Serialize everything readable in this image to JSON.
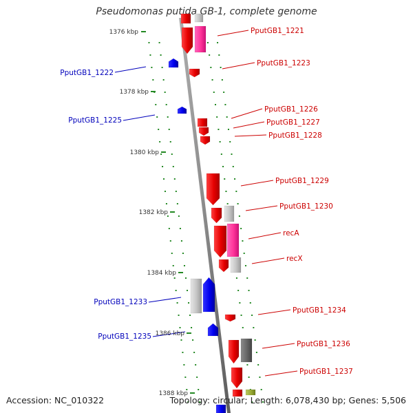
{
  "title": "Pseudomonas putida GB-1, complete genome",
  "footer": {
    "accession": "Accession: NC_010322",
    "summary": "Topology: circular; Length: 6,078,430 bp; Genes: 5,506"
  },
  "colors": {
    "forward_gene": "#ff0000",
    "reverse_gene": "#0000ff",
    "pink_feature": "#ff3399",
    "grey_feature": "#c0c0c0",
    "dark_feature": "#606060",
    "olive_feature": "#99aa33",
    "backbone": "#8a8a8a",
    "dots": "#228822"
  },
  "ticks": [
    {
      "label": "1376 kbp"
    },
    {
      "label": "1378 kbp"
    },
    {
      "label": "1380 kbp"
    },
    {
      "label": "1382 kbp"
    },
    {
      "label": "1384 kbp"
    },
    {
      "label": "1386 kbp"
    },
    {
      "label": "1388 kbp"
    }
  ],
  "genes_right": [
    {
      "label": "PputGB1_1221"
    },
    {
      "label": "PputGB1_1223"
    },
    {
      "label": "PputGB1_1226"
    },
    {
      "label": "PputGB1_1227"
    },
    {
      "label": "PputGB1_1228"
    },
    {
      "label": "PputGB1_1229"
    },
    {
      "label": "PputGB1_1230"
    },
    {
      "label": "recA"
    },
    {
      "label": "recX"
    },
    {
      "label": "PputGB1_1234"
    },
    {
      "label": "PputGB1_1236"
    },
    {
      "label": "PputGB1_1237"
    }
  ],
  "genes_left": [
    {
      "label": "PputGB1_1222"
    },
    {
      "label": "PputGB1_1225"
    },
    {
      "label": "PputGB1_1233"
    },
    {
      "label": "PputGB1_1235"
    }
  ]
}
